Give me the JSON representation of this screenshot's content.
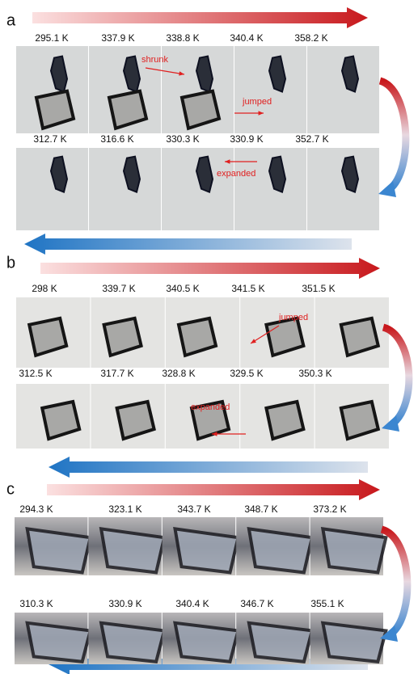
{
  "panels": [
    {
      "label": "a",
      "rows": [
        {
          "temperatures": [
            "295.1 K",
            "337.9 K",
            "338.8 K",
            "340.4 K",
            "358.2 K"
          ]
        },
        {
          "temperatures": [
            "312.7 K",
            "316.6 K",
            "330.3 K",
            "330.9 K",
            "352.7 K"
          ]
        }
      ],
      "annotations": [
        "shrunk",
        "jumped",
        "expanded"
      ]
    },
    {
      "label": "b",
      "rows": [
        {
          "temperatures": [
            "298 K",
            "339.7 K",
            "340.5 K",
            "341.5 K",
            "351.5 K"
          ]
        },
        {
          "temperatures": [
            "312.5 K",
            "317.7 K",
            "328.8 K",
            "329.5 K",
            "350.3 K"
          ]
        }
      ],
      "annotations": [
        "jumped",
        "expanded"
      ]
    },
    {
      "label": "c",
      "rows": [
        {
          "temperatures": [
            "294.3 K",
            "323.1 K",
            "343.7 K",
            "348.7 K",
            "373.2 K"
          ]
        },
        {
          "temperatures": [
            "310.3 K",
            "330.9 K",
            "340.4 K",
            "346.7 K",
            "355.1 K"
          ]
        }
      ],
      "annotations": []
    }
  ]
}
